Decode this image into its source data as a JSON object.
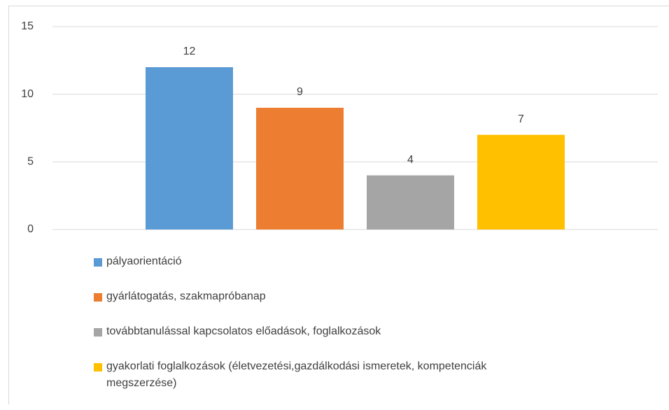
{
  "chart_data": {
    "type": "bar",
    "categories": [
      null
    ],
    "series": [
      {
        "name": "pályaorientáció",
        "color": "#5b9bd5",
        "values": [
          12
        ]
      },
      {
        "name": "gyárlátogatás, szakmapróbanap",
        "color": "#ed7d31",
        "values": [
          9
        ]
      },
      {
        "name": "továbbtanulással kapcsolatos előadások, foglalkozások",
        "color": "#a5a5a5",
        "values": [
          4
        ]
      },
      {
        "name": "gyakorlati foglalkozások (életvezetési,gazdálkodási ismeretek, kompetenciák megszerzése)",
        "color": "#ffc000",
        "values": [
          7
        ]
      }
    ],
    "ylim": [
      0,
      15
    ],
    "yticks": [
      0,
      5,
      10,
      15
    ],
    "grid": true,
    "legend": "bottom"
  }
}
